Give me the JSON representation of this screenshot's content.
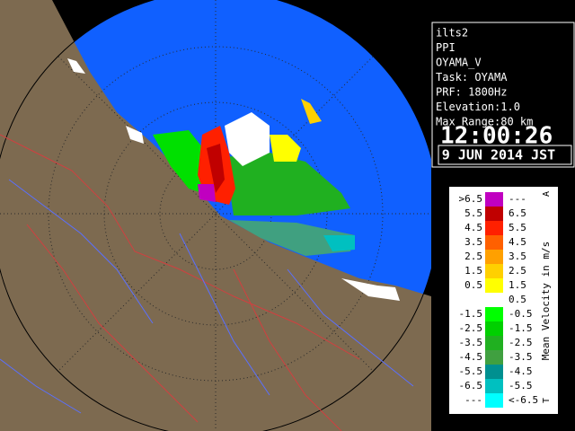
{
  "info": {
    "lines": [
      "ilts2",
      "PPI",
      "OYAMA_V",
      "Task: OYAMA",
      "PRF: 1800Hz",
      "Elevation:1.0",
      "Max Range:80 km"
    ],
    "time": "12:00:26",
    "date": "9 JUN 2014 JST"
  },
  "legend": {
    "title": "Mean Velocity in m/s",
    "top_mark": "A",
    "bottom_mark": "T",
    "rows": [
      {
        "low": ">6.5",
        "high": "---",
        "color": "#c000c0"
      },
      {
        "low": "5.5",
        "high": "6.5",
        "color": "#c00000"
      },
      {
        "low": "4.5",
        "high": "5.5",
        "color": "#ff2000"
      },
      {
        "low": "3.5",
        "high": "4.5",
        "color": "#ff6000"
      },
      {
        "low": "2.5",
        "high": "3.5",
        "color": "#ffa000"
      },
      {
        "low": "1.5",
        "high": "2.5",
        "color": "#ffd000"
      },
      {
        "low": "0.5",
        "high": "1.5",
        "color": "#ffff00"
      },
      {
        "high": "0.5",
        "color": "#ffffff"
      },
      {
        "low": "-1.5",
        "high": "-0.5",
        "color": "#00ff00"
      },
      {
        "low": "-2.5",
        "high": "-1.5",
        "color": "#00d000"
      },
      {
        "low": "-3.5",
        "high": "-2.5",
        "color": "#20b020"
      },
      {
        "low": "-4.5",
        "high": "-3.5",
        "color": "#40a040"
      },
      {
        "low": "-5.5",
        "high": "-4.5",
        "color": "#009090"
      },
      {
        "low": "-6.5",
        "high": "-5.5",
        "color": "#00c0c0"
      },
      {
        "low": "---",
        "high": "<-6.5",
        "color": "#00ffff"
      }
    ]
  }
}
